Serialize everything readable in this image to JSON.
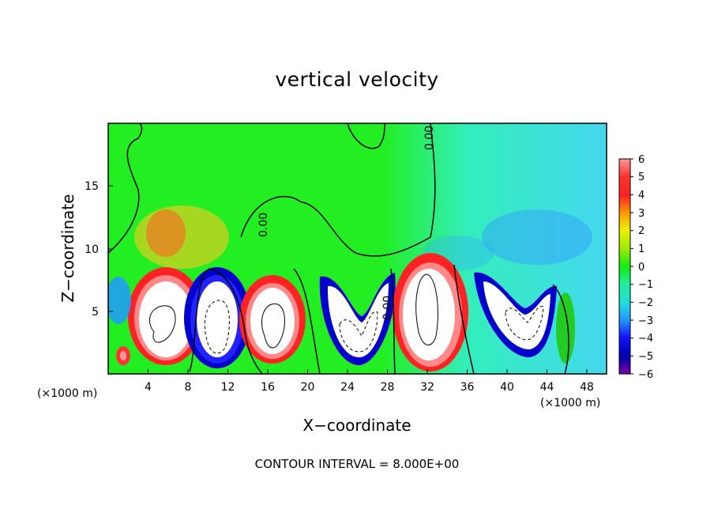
{
  "chart_data": {
    "type": "heatmap",
    "title": "vertical velocity",
    "xlabel": "X−coordinate",
    "ylabel": "Z−coordinate",
    "x_unit": "(×1000 m)",
    "xlim": [
      0,
      50
    ],
    "ylim": [
      0,
      20
    ],
    "x_ticks": [
      "4",
      "8",
      "12",
      "16",
      "20",
      "24",
      "28",
      "32",
      "36",
      "40",
      "44",
      "48"
    ],
    "y_ticks": [
      "5",
      "10",
      "15"
    ],
    "colorbar": {
      "range": [
        -6,
        6
      ],
      "ticks": [
        "6",
        "5",
        "4",
        "3",
        "2",
        "1",
        "0",
        "−1",
        "−2",
        "−3",
        "−4",
        "−5",
        "−6"
      ]
    },
    "cells": [
      {
        "x": 5.0,
        "z": 3.5,
        "value": 8
      },
      {
        "x": 10.5,
        "z": 3.5,
        "value": -8
      },
      {
        "x": 16.5,
        "z": 3.8,
        "value": 8
      },
      {
        "x": 24.5,
        "z": 3.0,
        "value": -8
      },
      {
        "x": 31.5,
        "z": 4.5,
        "value": 8
      },
      {
        "x": 42.0,
        "z": 4.5,
        "value": -8
      }
    ],
    "contour_labels": [
      "0.00",
      "0.00",
      "0.00"
    ],
    "footer": "CONTOUR INTERVAL = 8.000E+00"
  }
}
